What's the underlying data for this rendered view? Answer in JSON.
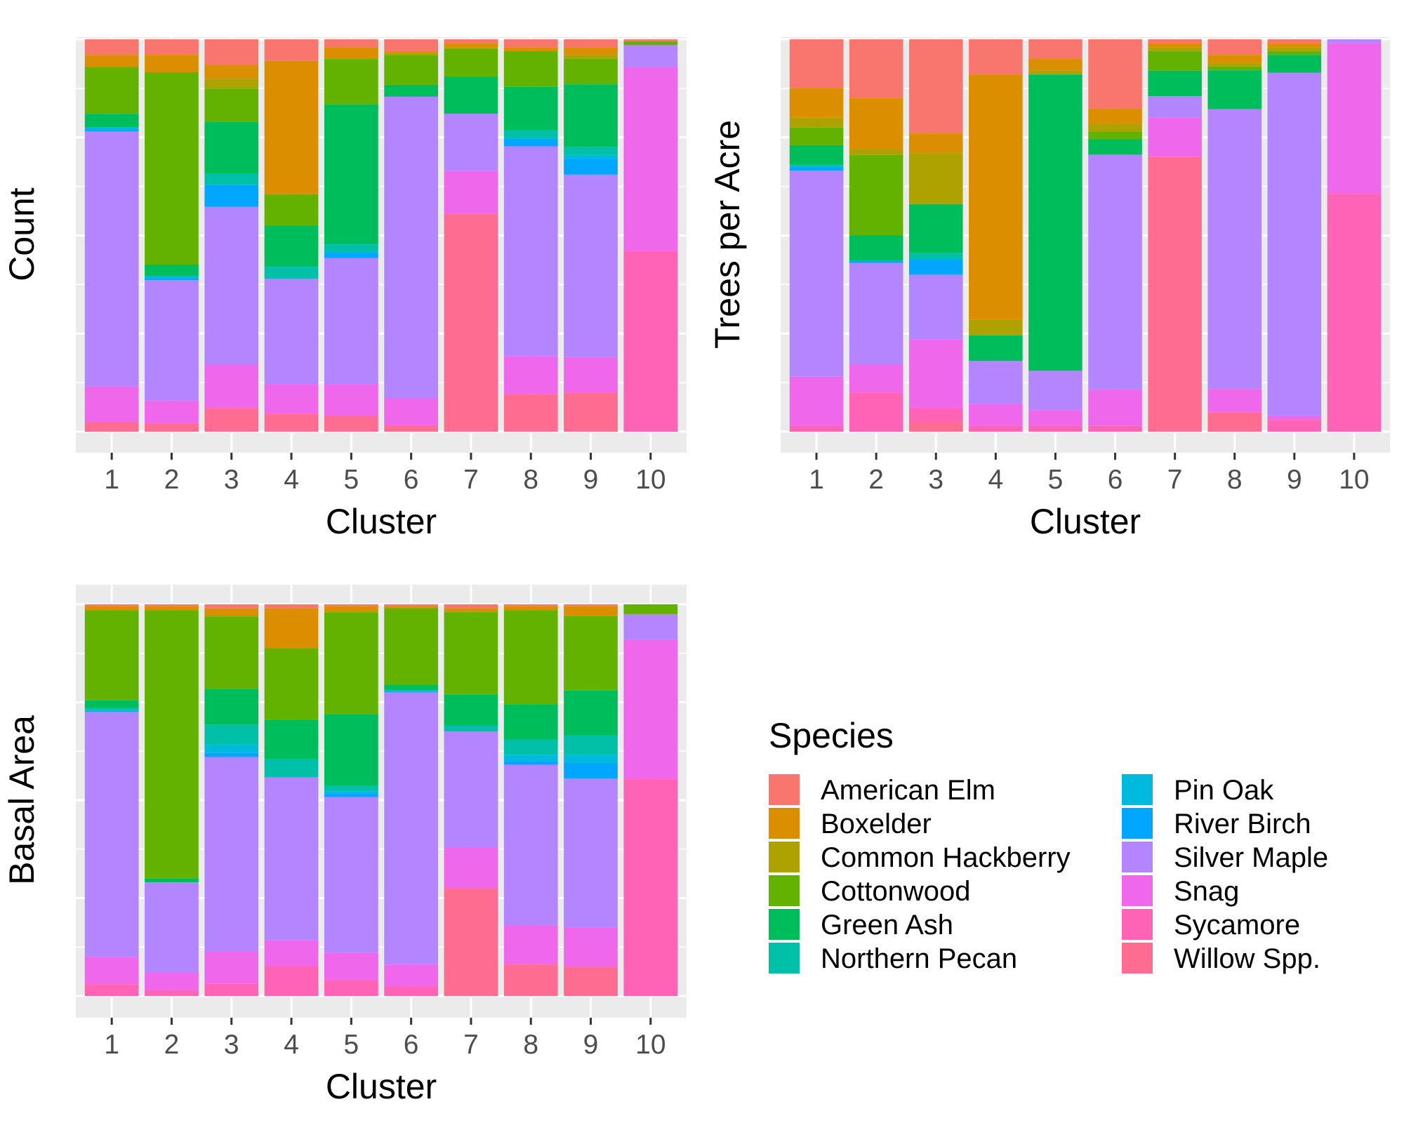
{
  "species": [
    "American Elm",
    "Boxelder",
    "Common Hackberry",
    "Cottonwood",
    "Green Ash",
    "Northern Pecan",
    "Pin Oak",
    "River Birch",
    "Silver Maple",
    "Snag",
    "Sycamore",
    "Willow Spp."
  ],
  "colors": [
    "#F8766D",
    "#DB8E00",
    "#AEA200",
    "#64B200",
    "#00BD5C",
    "#00C1A7",
    "#00BADE",
    "#00A6FF",
    "#B385FF",
    "#EF67EB",
    "#FF63B6",
    "#FF6C91"
  ],
  "legend": {
    "title": "Species"
  },
  "chart_data": [
    {
      "type": "bar",
      "stacked": true,
      "position": "fill",
      "xlabel": "Cluster",
      "ylabel": "Count",
      "categories": [
        "1",
        "2",
        "3",
        "4",
        "5",
        "6",
        "7",
        "8",
        "9",
        "10"
      ],
      "ylim": [
        0,
        1
      ],
      "grid": true,
      "series": [
        {
          "name": "American Elm",
          "values": [
            0.04,
            0.04,
            0.065,
            0.055,
            0.02,
            0.03,
            0.01,
            0.02,
            0.02,
            0.005
          ]
        },
        {
          "name": "Boxelder",
          "values": [
            0.03,
            0.045,
            0.035,
            0.34,
            0.03,
            0.005,
            0.01,
            0.01,
            0.02,
            0.0
          ]
        },
        {
          "name": "Common Hackberry",
          "values": [
            0.0,
            0.0,
            0.025,
            0.0,
            0.0,
            0.005,
            0.005,
            0.0,
            0.01,
            0.0
          ]
        },
        {
          "name": "Cottonwood",
          "values": [
            0.12,
            0.495,
            0.085,
            0.08,
            0.115,
            0.075,
            0.07,
            0.09,
            0.065,
            0.01
          ]
        },
        {
          "name": "Green Ash",
          "values": [
            0.035,
            0.03,
            0.13,
            0.105,
            0.355,
            0.03,
            0.095,
            0.11,
            0.16,
            0.0
          ]
        },
        {
          "name": "Northern Pecan",
          "values": [
            0.0,
            0.0,
            0.03,
            0.03,
            0.02,
            0.0,
            0.0,
            0.02,
            0.02,
            0.0
          ]
        },
        {
          "name": "Pin Oak",
          "values": [
            0.005,
            0.005,
            0.0,
            0.0,
            0.0,
            0.0,
            0.0,
            0.0,
            0.01,
            0.0
          ]
        },
        {
          "name": "River Birch",
          "values": [
            0.005,
            0.005,
            0.055,
            0.0,
            0.015,
            0.0,
            0.0,
            0.02,
            0.04,
            0.0
          ]
        },
        {
          "name": "Silver Maple",
          "values": [
            0.65,
            0.31,
            0.4,
            0.27,
            0.32,
            0.76,
            0.145,
            0.53,
            0.465,
            0.055
          ]
        },
        {
          "name": "Snag",
          "values": [
            0.09,
            0.06,
            0.11,
            0.075,
            0.08,
            0.07,
            0.11,
            0.095,
            0.09,
            0.47
          ]
        },
        {
          "name": "Sycamore",
          "values": [
            0.0,
            0.0,
            0.0,
            0.0,
            0.0,
            0.0,
            0.0,
            0.0,
            0.0,
            0.46
          ]
        },
        {
          "name": "Willow Spp.",
          "values": [
            0.025,
            0.02,
            0.06,
            0.045,
            0.04,
            0.015,
            0.555,
            0.095,
            0.1,
            0.0
          ]
        }
      ]
    },
    {
      "type": "bar",
      "stacked": true,
      "position": "fill",
      "xlabel": "Cluster",
      "ylabel": "Trees per Acre",
      "categories": [
        "1",
        "2",
        "3",
        "4",
        "5",
        "6",
        "7",
        "8",
        "9",
        "10"
      ],
      "ylim": [
        0,
        1
      ],
      "grid": true,
      "series": [
        {
          "name": "American Elm",
          "values": [
            0.125,
            0.15,
            0.24,
            0.09,
            0.05,
            0.18,
            0.01,
            0.04,
            0.01,
            0.0
          ]
        },
        {
          "name": "Boxelder",
          "values": [
            0.075,
            0.13,
            0.05,
            0.625,
            0.03,
            0.04,
            0.01,
            0.02,
            0.01,
            0.0
          ]
        },
        {
          "name": "Common Hackberry",
          "values": [
            0.025,
            0.015,
            0.13,
            0.04,
            0.01,
            0.02,
            0.01,
            0.01,
            0.01,
            0.0
          ]
        },
        {
          "name": "Cottonwood",
          "values": [
            0.045,
            0.205,
            0.0,
            0.0,
            0.0,
            0.02,
            0.05,
            0.01,
            0.01,
            0.0
          ]
        },
        {
          "name": "Green Ash",
          "values": [
            0.05,
            0.065,
            0.125,
            0.065,
            0.755,
            0.04,
            0.065,
            0.1,
            0.045,
            0.0
          ]
        },
        {
          "name": "Northern Pecan",
          "values": [
            0.005,
            0.0,
            0.015,
            0.0,
            0.0,
            0.0,
            0.0,
            0.0,
            0.0,
            0.0
          ]
        },
        {
          "name": "Pin Oak",
          "values": [
            0.0,
            0.0,
            0.0,
            0.0,
            0.0,
            0.0,
            0.0,
            0.0,
            0.0,
            0.0
          ]
        },
        {
          "name": "River Birch",
          "values": [
            0.01,
            0.005,
            0.04,
            0.0,
            0.0,
            0.0,
            0.0,
            0.0,
            0.0,
            0.0
          ]
        },
        {
          "name": "Silver Maple",
          "values": [
            0.525,
            0.26,
            0.165,
            0.11,
            0.1,
            0.61,
            0.055,
            0.72,
            0.875,
            0.01
          ]
        },
        {
          "name": "Snag",
          "values": [
            0.125,
            0.07,
            0.175,
            0.055,
            0.04,
            0.095,
            0.1,
            0.06,
            0.01,
            0.38
          ]
        },
        {
          "name": "Sycamore",
          "values": [
            0.015,
            0.1,
            0.035,
            0.015,
            0.015,
            0.015,
            0.0,
            0.0,
            0.03,
            0.6
          ]
        },
        {
          "name": "Willow Spp.",
          "values": [
            0.0,
            0.0,
            0.025,
            0.0,
            0.0,
            0.0,
            0.7,
            0.05,
            0.0,
            0.0
          ]
        }
      ]
    },
    {
      "type": "bar",
      "stacked": true,
      "position": "fill",
      "xlabel": "Cluster",
      "ylabel": "Basal Area",
      "categories": [
        "1",
        "2",
        "3",
        "4",
        "5",
        "6",
        "7",
        "8",
        "9",
        "10"
      ],
      "ylim": [
        0,
        1
      ],
      "grid": true,
      "series": [
        {
          "name": "American Elm",
          "values": [
            0.005,
            0.005,
            0.01,
            0.01,
            0.005,
            0.005,
            0.01,
            0.005,
            0.005,
            0.0
          ]
        },
        {
          "name": "Boxelder",
          "values": [
            0.01,
            0.01,
            0.02,
            0.1,
            0.015,
            0.005,
            0.01,
            0.01,
            0.025,
            0.0
          ]
        },
        {
          "name": "Common Hackberry",
          "values": [
            0.0,
            0.0,
            0.0,
            0.0,
            0.0,
            0.0,
            0.0,
            0.0,
            0.0,
            0.0
          ]
        },
        {
          "name": "Cottonwood",
          "values": [
            0.23,
            0.685,
            0.18,
            0.18,
            0.26,
            0.195,
            0.21,
            0.24,
            0.19,
            0.025
          ]
        },
        {
          "name": "Green Ash",
          "values": [
            0.02,
            0.01,
            0.09,
            0.1,
            0.18,
            0.015,
            0.08,
            0.09,
            0.115,
            0.0
          ]
        },
        {
          "name": "Northern Pecan",
          "values": [
            0.005,
            0.0,
            0.05,
            0.045,
            0.015,
            0.0,
            0.015,
            0.04,
            0.05,
            0.0
          ]
        },
        {
          "name": "Pin Oak",
          "values": [
            0.005,
            0.0,
            0.02,
            0.0,
            0.005,
            0.005,
            0.0,
            0.015,
            0.02,
            0.0
          ]
        },
        {
          "name": "River Birch",
          "values": [
            0.0,
            0.0,
            0.01,
            0.0,
            0.01,
            0.0,
            0.0,
            0.01,
            0.04,
            0.0
          ]
        },
        {
          "name": "Silver Maple",
          "values": [
            0.625,
            0.23,
            0.485,
            0.41,
            0.395,
            0.695,
            0.295,
            0.41,
            0.38,
            0.065
          ]
        },
        {
          "name": "Snag",
          "values": [
            0.07,
            0.045,
            0.08,
            0.065,
            0.07,
            0.055,
            0.105,
            0.1,
            0.1,
            0.355
          ]
        },
        {
          "name": "Sycamore",
          "values": [
            0.03,
            0.015,
            0.03,
            0.075,
            0.04,
            0.025,
            0.0,
            0.0,
            0.0,
            0.555
          ]
        },
        {
          "name": "Willow Spp.",
          "values": [
            0.0,
            0.0,
            0.0,
            0.0,
            0.0,
            0.0,
            0.275,
            0.08,
            0.075,
            0.0
          ]
        }
      ]
    }
  ]
}
